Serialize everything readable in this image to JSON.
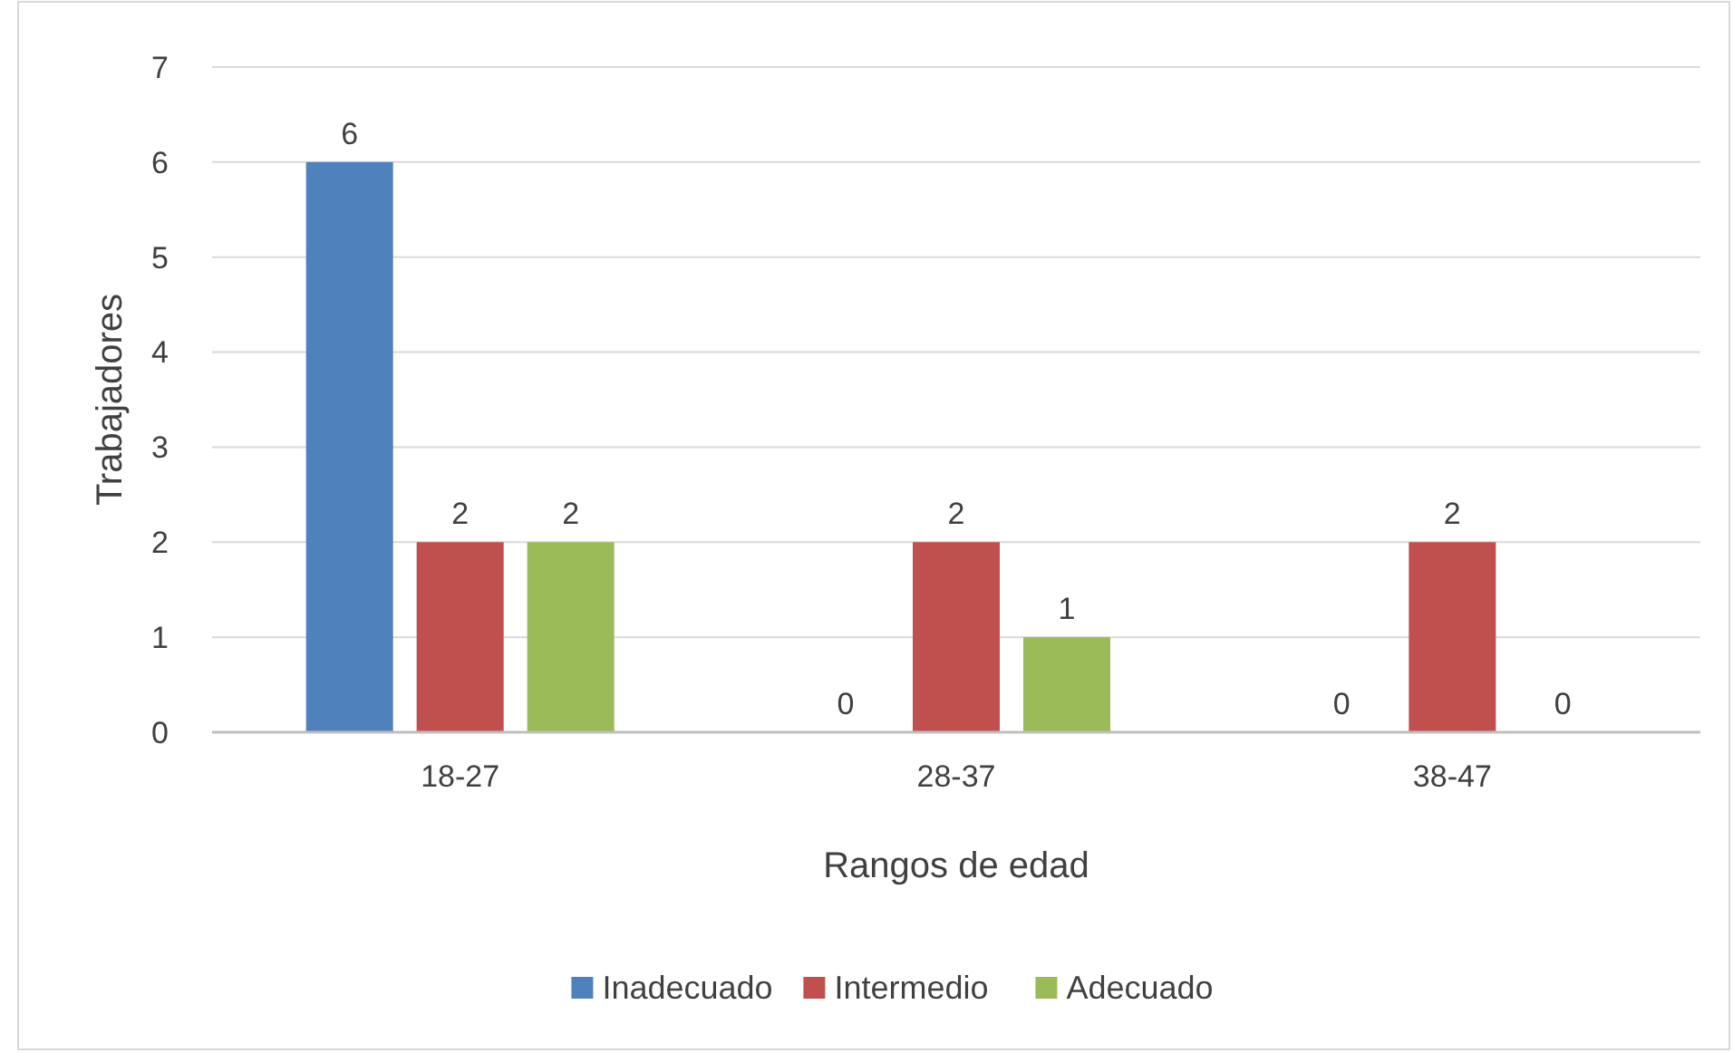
{
  "chart_data": {
    "type": "bar",
    "xlabel": "Rangos de edad",
    "ylabel": "Trabajadores",
    "categories": [
      "18-27",
      "28-37",
      "38-47"
    ],
    "series": [
      {
        "name": "Inadecuado",
        "color": "#4f81bd",
        "values": [
          6,
          0,
          0
        ]
      },
      {
        "name": "Intermedio",
        "color": "#c0504d",
        "values": [
          2,
          2,
          2
        ]
      },
      {
        "name": "Adecuado",
        "color": "#9bbb59",
        "values": [
          2,
          1,
          0
        ]
      }
    ],
    "ylim": [
      0,
      7
    ],
    "yticks": [
      0,
      1,
      2,
      3,
      4,
      5,
      6,
      7
    ],
    "grid": "y",
    "legend": "bottom",
    "data_labels": true
  }
}
